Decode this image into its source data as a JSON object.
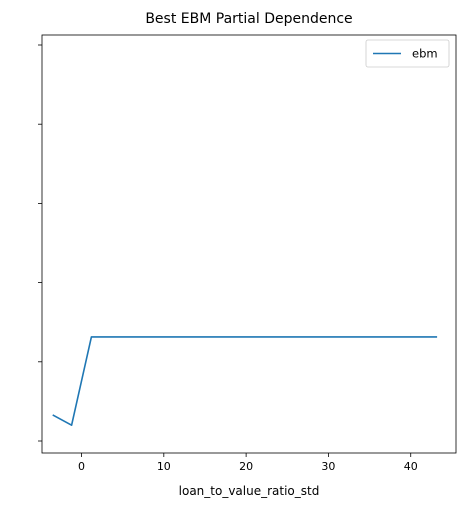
{
  "chart_data": {
    "type": "line",
    "title": "Best EBM Partial Dependence",
    "xlabel": "loan_to_value_ratio_std",
    "ylabel": "",
    "xlim": [
      -4.8,
      45.5
    ],
    "ylim": [
      0,
      1
    ],
    "xticks": [
      0,
      10,
      20,
      30,
      40
    ],
    "yticks_count": 6,
    "ytick_labels_visible": false,
    "legend_position": "upper right",
    "series": [
      {
        "name": "ebm",
        "color": "#1f77b4",
        "x": [
          -3.5,
          -1.2,
          1.2,
          43.2
        ],
        "y": [
          0.066,
          0.04,
          0.263,
          0.263
        ]
      }
    ]
  }
}
